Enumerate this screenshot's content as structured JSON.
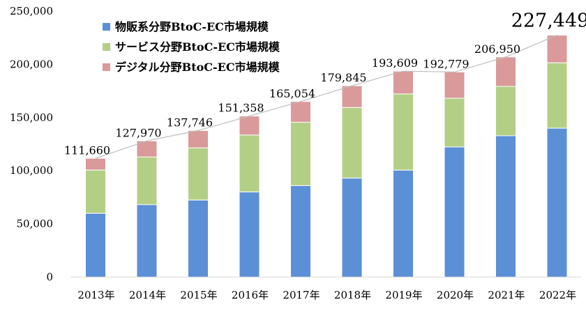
{
  "chart_data": {
    "type": "bar",
    "stacked": true,
    "categories": [
      "2013年",
      "2014年",
      "2015年",
      "2016年",
      "2017年",
      "2018年",
      "2019年",
      "2020年",
      "2021年",
      "2022年"
    ],
    "series": [
      {
        "name": "物販系分野BtoC-EC市場規模",
        "color": "#5b8fd6",
        "values": [
          59931,
          68043,
          72398,
          80043,
          86008,
          92992,
          100515,
          122333,
          132865,
          139997
        ]
      },
      {
        "name": "サービス分野BtoC-EC市場規模",
        "color": "#b3cf86",
        "values": [
          40728,
          44816,
          49014,
          53532,
          59568,
          66471,
          71672,
          45832,
          46424,
          61477
        ]
      },
      {
        "name": "デジタル分野BtoC-EC市場規模",
        "color": "#d99a99",
        "values": [
          11001,
          15111,
          16334,
          17783,
          19478,
          20382,
          21422,
          24614,
          27661,
          25975
        ]
      }
    ],
    "totals": [
      111660,
      127970,
      137746,
      151358,
      165054,
      179845,
      193609,
      192779,
      206950,
      227449
    ],
    "total_labels": [
      "111,660",
      "127,970",
      "137,746",
      "151,358",
      "165,054",
      "179,845",
      "193,609",
      "192,779",
      "206,950",
      "227,449"
    ],
    "yticks": [
      0,
      50000,
      100000,
      150000,
      200000,
      250000
    ],
    "ytick_labels": [
      "0",
      "50,000",
      "100,000",
      "150,000",
      "200,000",
      "250,000"
    ],
    "ylim": [
      0,
      250000
    ],
    "legend_position": "top-left",
    "grid": false,
    "title": "",
    "xlabel": "",
    "ylabel": ""
  }
}
